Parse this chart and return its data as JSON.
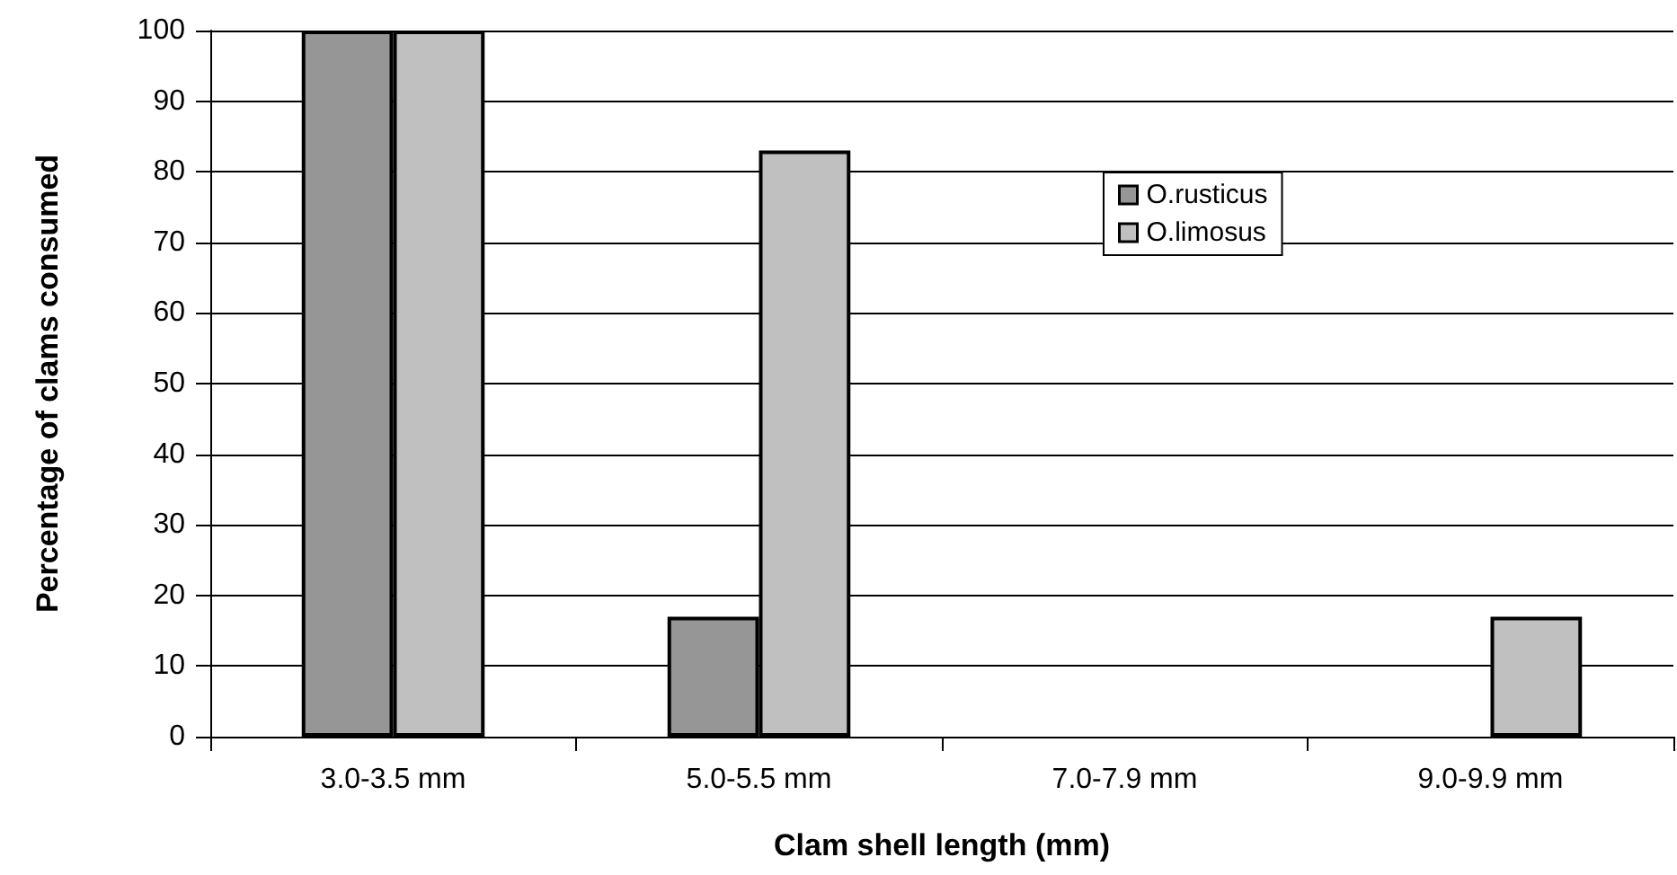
{
  "chart_data": {
    "type": "bar",
    "xlabel": "Clam shell length (mm)",
    "ylabel": "Percentage of clams consumed",
    "categories": [
      "3.0-3.5 mm",
      "5.0-5.5 mm",
      "7.0-7.9 mm",
      "9.0-9.9 mm"
    ],
    "series": [
      {
        "name": "O.rusticus",
        "color": "#969696",
        "values": [
          100,
          17,
          0,
          0
        ]
      },
      {
        "name": "O.limosus",
        "color": "#c0c0c0",
        "values": [
          100,
          83,
          0,
          17
        ]
      }
    ],
    "ylim": [
      0,
      100
    ],
    "yticks": [
      0,
      10,
      20,
      30,
      40,
      50,
      60,
      70,
      80,
      90,
      100
    ],
    "grid": "y",
    "legend": "right"
  }
}
